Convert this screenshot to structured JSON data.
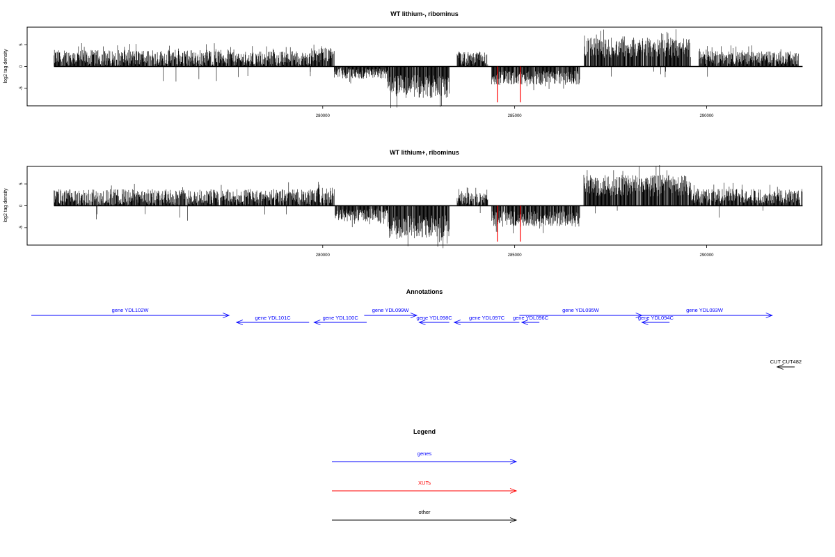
{
  "chart_data": [
    {
      "type": "bar",
      "title": "WT lithium-, ribominus",
      "ylabel": "log2 tag density",
      "xlim": [
        272300,
        293000
      ],
      "ylim": [
        -9,
        9
      ],
      "x_ticks": [
        280000,
        285000,
        290000
      ],
      "y_ticks": [
        -5,
        0,
        5
      ],
      "baseline": 0,
      "segments": [
        {
          "start": 273000,
          "end": 275900,
          "sign": 1,
          "mean": 2.0,
          "amp": 1.8
        },
        {
          "start": 275900,
          "end": 277700,
          "sign": 1,
          "mean": 2.1,
          "amp": 1.8
        },
        {
          "start": 277700,
          "end": 279700,
          "sign": 1,
          "mean": 1.8,
          "amp": 1.7
        },
        {
          "start": 279700,
          "end": 280300,
          "sign": 1,
          "mean": 2.6,
          "amp": 1.6
        },
        {
          "start": 280300,
          "end": 281700,
          "sign": -1,
          "mean": 1.6,
          "amp": 1.2
        },
        {
          "start": 281700,
          "end": 283300,
          "sign": -1,
          "mean": 4.6,
          "amp": 2.6
        },
        {
          "start": 283500,
          "end": 284300,
          "sign": 1,
          "mean": 1.8,
          "amp": 1.6
        },
        {
          "start": 284400,
          "end": 286700,
          "sign": -1,
          "mean": 2.6,
          "amp": 1.6
        },
        {
          "start": 286800,
          "end": 289600,
          "sign": 1,
          "mean": 4.3,
          "amp": 2.3
        },
        {
          "start": 289800,
          "end": 292400,
          "sign": 1,
          "mean": 2.0,
          "amp": 1.5
        }
      ],
      "highlights": [
        {
          "x": 284550,
          "value": -8.2,
          "color": "#ff0000"
        },
        {
          "x": 285150,
          "value": -8.2,
          "color": "#ff0000"
        }
      ]
    },
    {
      "type": "bar",
      "title": "WT lithium+, ribominus",
      "ylabel": "log2 tag density",
      "xlim": [
        272300,
        293000
      ],
      "ylim": [
        -9,
        9
      ],
      "x_ticks": [
        280000,
        285000,
        290000
      ],
      "y_ticks": [
        -5,
        0,
        5
      ],
      "baseline": 0,
      "segments": [
        {
          "start": 273000,
          "end": 279800,
          "sign": 1,
          "mean": 2.0,
          "amp": 1.8
        },
        {
          "start": 279800,
          "end": 280300,
          "sign": 1,
          "mean": 2.4,
          "amp": 1.8
        },
        {
          "start": 280300,
          "end": 281700,
          "sign": -1,
          "mean": 2.1,
          "amp": 1.5
        },
        {
          "start": 281700,
          "end": 283300,
          "sign": -1,
          "mean": 4.8,
          "amp": 2.6
        },
        {
          "start": 283500,
          "end": 284300,
          "sign": 1,
          "mean": 1.6,
          "amp": 1.4
        },
        {
          "start": 284400,
          "end": 286700,
          "sign": -1,
          "mean": 3.0,
          "amp": 1.8
        },
        {
          "start": 286800,
          "end": 289600,
          "sign": 1,
          "mean": 4.6,
          "amp": 2.5
        },
        {
          "start": 289600,
          "end": 292500,
          "sign": 1,
          "mean": 2.2,
          "amp": 1.7
        }
      ],
      "highlights": [
        {
          "x": 284550,
          "value": -8.2,
          "color": "#ff0000"
        },
        {
          "x": 285150,
          "value": -8.2,
          "color": "#ff0000"
        }
      ]
    }
  ],
  "annotations": {
    "title": "Annotations",
    "features": [
      {
        "label": "gene YDL102W",
        "start": 272300,
        "end": 280200,
        "strand": "+",
        "row": 0,
        "color": "#0000ff"
      },
      {
        "label": "gene YDL101C",
        "start": 280500,
        "end": 283400,
        "strand": "-",
        "row": 1,
        "color": "#0000ff"
      },
      {
        "label": "gene YDL100C",
        "start": 283600,
        "end": 285700,
        "strand": "-",
        "row": 1,
        "color": "#0000ff"
      },
      {
        "label": "gene YDL099W",
        "start": 285600,
        "end": 287700,
        "strand": "+",
        "row": 0,
        "color": "#0000ff"
      },
      {
        "label": "gene YDL098C",
        "start": 287800,
        "end": 289000,
        "strand": "-",
        "row": 1,
        "color": "#0000ff"
      },
      {
        "label": "gene YDL097C",
        "start": 289200,
        "end": 291800,
        "strand": "-",
        "row": 1,
        "color": "#0000ff"
      },
      {
        "label": "gene YDL096C",
        "start": 291900,
        "end": 292600,
        "strand": "-",
        "row": 1,
        "color": "#0000ff"
      },
      {
        "label": "gene YDL095W",
        "start": 291800,
        "end": 296700,
        "strand": "+",
        "row": 0,
        "color": "#0000ff"
      },
      {
        "label": "gene YDL094C",
        "start": 296700,
        "end": 297800,
        "strand": "-",
        "row": 1,
        "color": "#0000ff"
      },
      {
        "label": "gene YDL093W",
        "start": 296500,
        "end": 301900,
        "strand": "+",
        "row": 0,
        "color": "#0000ff"
      },
      {
        "label": "CUT CUT482",
        "start": 302100,
        "end": 302800,
        "strand": "-",
        "row": 2,
        "color": "#000000"
      }
    ]
  },
  "legend": {
    "title": "Legend",
    "items": [
      {
        "label": "genes",
        "color": "#0000ff"
      },
      {
        "label": "XUTs",
        "color": "#ff0000"
      },
      {
        "label": "other",
        "color": "#000000"
      }
    ]
  }
}
